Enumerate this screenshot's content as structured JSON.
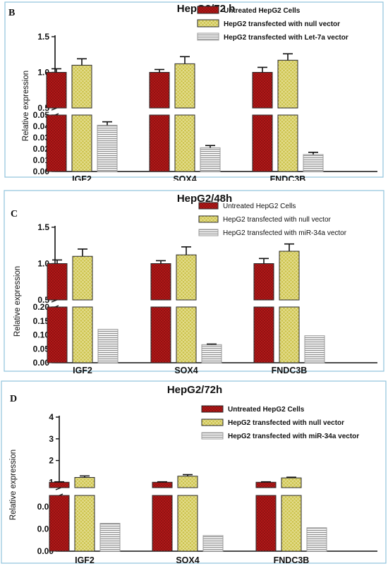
{
  "colors": {
    "untreated": "#b01818",
    "null_vector": "#cdc34c",
    "treatment": "#d2d2d2",
    "bar_stroke": "#2a2a2a",
    "frame": "#8fc3dc"
  },
  "chart_data": [
    {
      "type": "bar",
      "panel_letter": "B",
      "title": "HepG2/72 h",
      "ylabel": "Relative expression",
      "categories": [
        "IGF2",
        "SOX4",
        "FNDC3B"
      ],
      "legend_position": "top-right",
      "series": [
        {
          "name": "Untreated HepG2 Cells",
          "values": [
            1.0,
            1.0,
            1.0
          ],
          "errors": [
            0.05,
            0.04,
            0.07
          ]
        },
        {
          "name": "HepG2 transfected with null vector",
          "values": [
            1.1,
            1.12,
            1.17
          ],
          "errors": [
            0.09,
            0.1,
            0.09
          ]
        },
        {
          "name": "HepG2 transfected with Let-7a vector",
          "values": [
            0.041,
            0.021,
            0.015
          ],
          "errors": [
            0.003,
            0.002,
            0.002
          ]
        }
      ],
      "upper_axis": {
        "ylim": [
          0.5,
          1.5
        ],
        "ticks": [
          "0.5",
          "1.0",
          "1.5"
        ]
      },
      "lower_axis": {
        "ylim": [
          0,
          0.05
        ],
        "ticks": [
          "0.00",
          "0.01",
          "0.02",
          "0.03",
          "0.04",
          "0.05"
        ]
      }
    },
    {
      "type": "bar",
      "panel_letter": "C",
      "title": "HepG2/48h",
      "ylabel": "Relative expression",
      "categories": [
        "IGF2",
        "SOX4",
        "FNDC3B"
      ],
      "legend_position": "top-right",
      "series": [
        {
          "name": "Untreated HepG2 Cells",
          "values": [
            1.0,
            1.0,
            1.0
          ],
          "errors": [
            0.05,
            0.04,
            0.07
          ]
        },
        {
          "name": "HepG2 transfected with null vector",
          "values": [
            1.1,
            1.12,
            1.17
          ],
          "errors": [
            0.1,
            0.11,
            0.1
          ]
        },
        {
          "name": "HepG2 transfected with miR-34a vector",
          "values": [
            0.12,
            0.065,
            0.097
          ],
          "errors": [
            0,
            0.002,
            0
          ]
        }
      ],
      "upper_axis": {
        "ylim": [
          0.5,
          1.5
        ],
        "ticks": [
          "0.5",
          "1.0",
          "1.5"
        ]
      },
      "lower_axis": {
        "ylim": [
          0,
          0.2
        ],
        "ticks": [
          "0.00",
          "0.05",
          "0.10",
          "0.15",
          "0.20"
        ]
      }
    },
    {
      "type": "bar",
      "panel_letter": "D",
      "title": "HepG2/72h",
      "ylabel": "Relative expression",
      "categories": [
        "IGF2",
        "SOX4",
        "FNDC3B"
      ],
      "legend_position": "top-right",
      "series": [
        {
          "name": "Untreated HepG2 Cells",
          "values": [
            1.0,
            1.0,
            1.0
          ],
          "errors": [
            0.02,
            0.02,
            0.02
          ]
        },
        {
          "name": "HepG2 transfected with null vector",
          "values": [
            1.22,
            1.28,
            1.2
          ],
          "errors": [
            0.07,
            0.07,
            0.03
          ]
        },
        {
          "name": "HepG2 transfected with miR-34a vector",
          "values": [
            0.025,
            0.014,
            0.021
          ],
          "errors": [
            0,
            0,
            0
          ]
        }
      ],
      "upper_axis": {
        "ylim": [
          0,
          4
        ],
        "ticks": [
          "1",
          "2",
          "3",
          "4"
        ]
      },
      "lower_axis": {
        "ylim": [
          0,
          0.05
        ],
        "ticks": [
          "0.00",
          "0.02",
          "0.04"
        ]
      }
    }
  ]
}
